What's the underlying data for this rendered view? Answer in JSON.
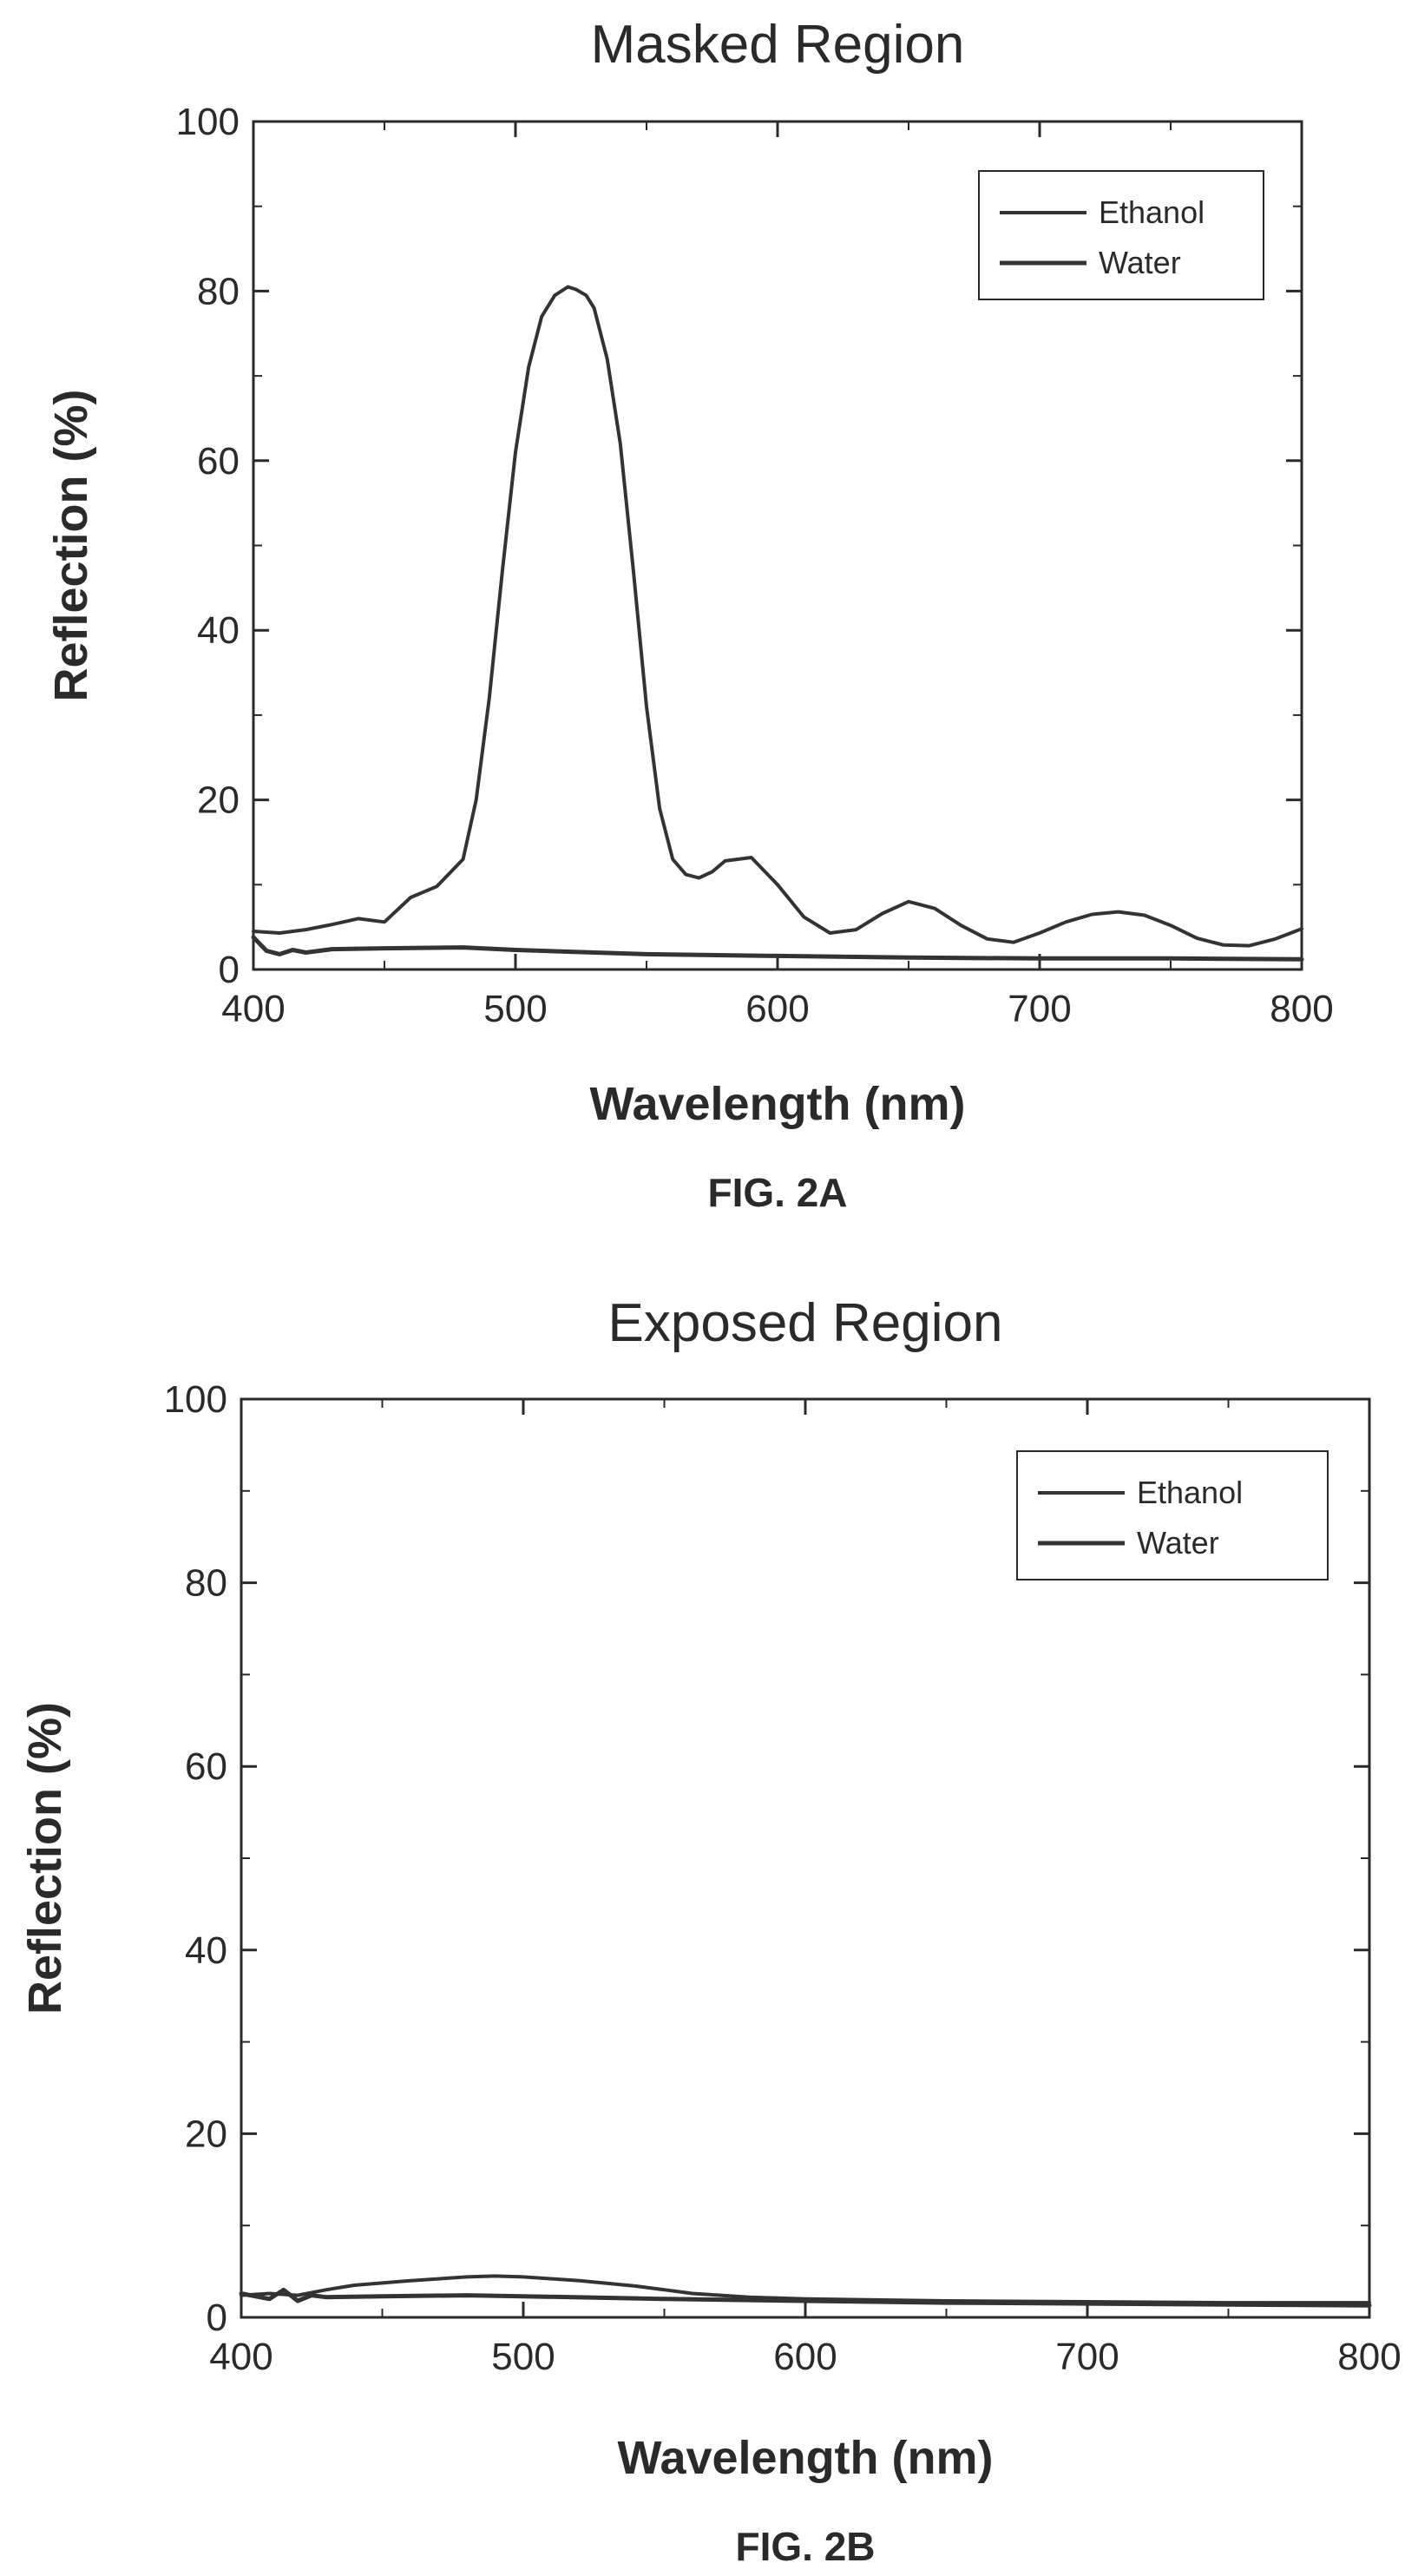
{
  "colors": {
    "axis": "#2a2a2a",
    "series": "#333333",
    "background": "#ffffff"
  },
  "chart_data": [
    {
      "type": "line",
      "title": "Masked Region",
      "caption": "FIG. 2A",
      "xlabel": "Wavelength (nm)",
      "ylabel": "Reflection (%)",
      "xlim": [
        400,
        800
      ],
      "ylim": [
        0,
        100
      ],
      "xticks": [
        "400",
        "500",
        "600",
        "700",
        "800"
      ],
      "yticks": [
        "0",
        "20",
        "40",
        "60",
        "80",
        "100"
      ],
      "grid": false,
      "legend_position": "top-right",
      "series": [
        {
          "name": "Ethanol",
          "x": [
            400,
            410,
            420,
            430,
            440,
            450,
            460,
            470,
            480,
            485,
            490,
            495,
            500,
            505,
            510,
            515,
            520,
            523,
            527,
            530,
            535,
            540,
            545,
            550,
            555,
            560,
            565,
            570,
            575,
            580,
            590,
            600,
            610,
            620,
            630,
            640,
            650,
            660,
            670,
            680,
            690,
            700,
            710,
            720,
            730,
            740,
            750,
            760,
            770,
            780,
            790,
            800
          ],
          "y": [
            4.5,
            4.3,
            4.7,
            5.3,
            6.0,
            5.6,
            8.5,
            9.8,
            13,
            20,
            32,
            47,
            61,
            71,
            77,
            79.5,
            80.5,
            80.2,
            79.5,
            78,
            72,
            62,
            47,
            31,
            19,
            13,
            11.2,
            10.8,
            11.5,
            12.8,
            13.2,
            10,
            6.2,
            4.3,
            4.7,
            6.6,
            8,
            7.2,
            5.2,
            3.6,
            3.2,
            4.3,
            5.6,
            6.5,
            6.8,
            6.4,
            5.2,
            3.7,
            2.9,
            2.8,
            3.6,
            4.8
          ]
        },
        {
          "name": "Water",
          "x": [
            400,
            405,
            410,
            415,
            420,
            430,
            450,
            480,
            500,
            550,
            600,
            650,
            700,
            750,
            800
          ],
          "y": [
            3.8,
            2.2,
            1.8,
            2.3,
            2.0,
            2.4,
            2.5,
            2.6,
            2.3,
            1.8,
            1.6,
            1.4,
            1.3,
            1.3,
            1.2
          ]
        }
      ]
    },
    {
      "type": "line",
      "title": "Exposed Region",
      "caption": "FIG. 2B",
      "xlabel": "Wavelength (nm)",
      "ylabel": "Reflection (%)",
      "xlim": [
        400,
        800
      ],
      "ylim": [
        0,
        100
      ],
      "xticks": [
        "400",
        "500",
        "600",
        "700",
        "800"
      ],
      "yticks": [
        "0",
        "20",
        "40",
        "60",
        "80",
        "100"
      ],
      "grid": false,
      "legend_position": "top-right",
      "series": [
        {
          "name": "Ethanol",
          "x": [
            400,
            410,
            420,
            430,
            440,
            460,
            480,
            490,
            500,
            520,
            540,
            560,
            580,
            600,
            650,
            700,
            750,
            800
          ],
          "y": [
            2.4,
            2.6,
            2.4,
            3.0,
            3.5,
            4.0,
            4.4,
            4.5,
            4.4,
            4.0,
            3.4,
            2.6,
            2.2,
            2.0,
            1.8,
            1.7,
            1.6,
            1.6
          ]
        },
        {
          "name": "Water",
          "x": [
            400,
            410,
            415,
            420,
            425,
            430,
            450,
            480,
            500,
            550,
            600,
            650,
            700,
            750,
            800
          ],
          "y": [
            2.6,
            2.0,
            3.0,
            1.8,
            2.4,
            2.2,
            2.3,
            2.4,
            2.3,
            2.0,
            1.8,
            1.6,
            1.5,
            1.4,
            1.3
          ]
        }
      ]
    }
  ]
}
